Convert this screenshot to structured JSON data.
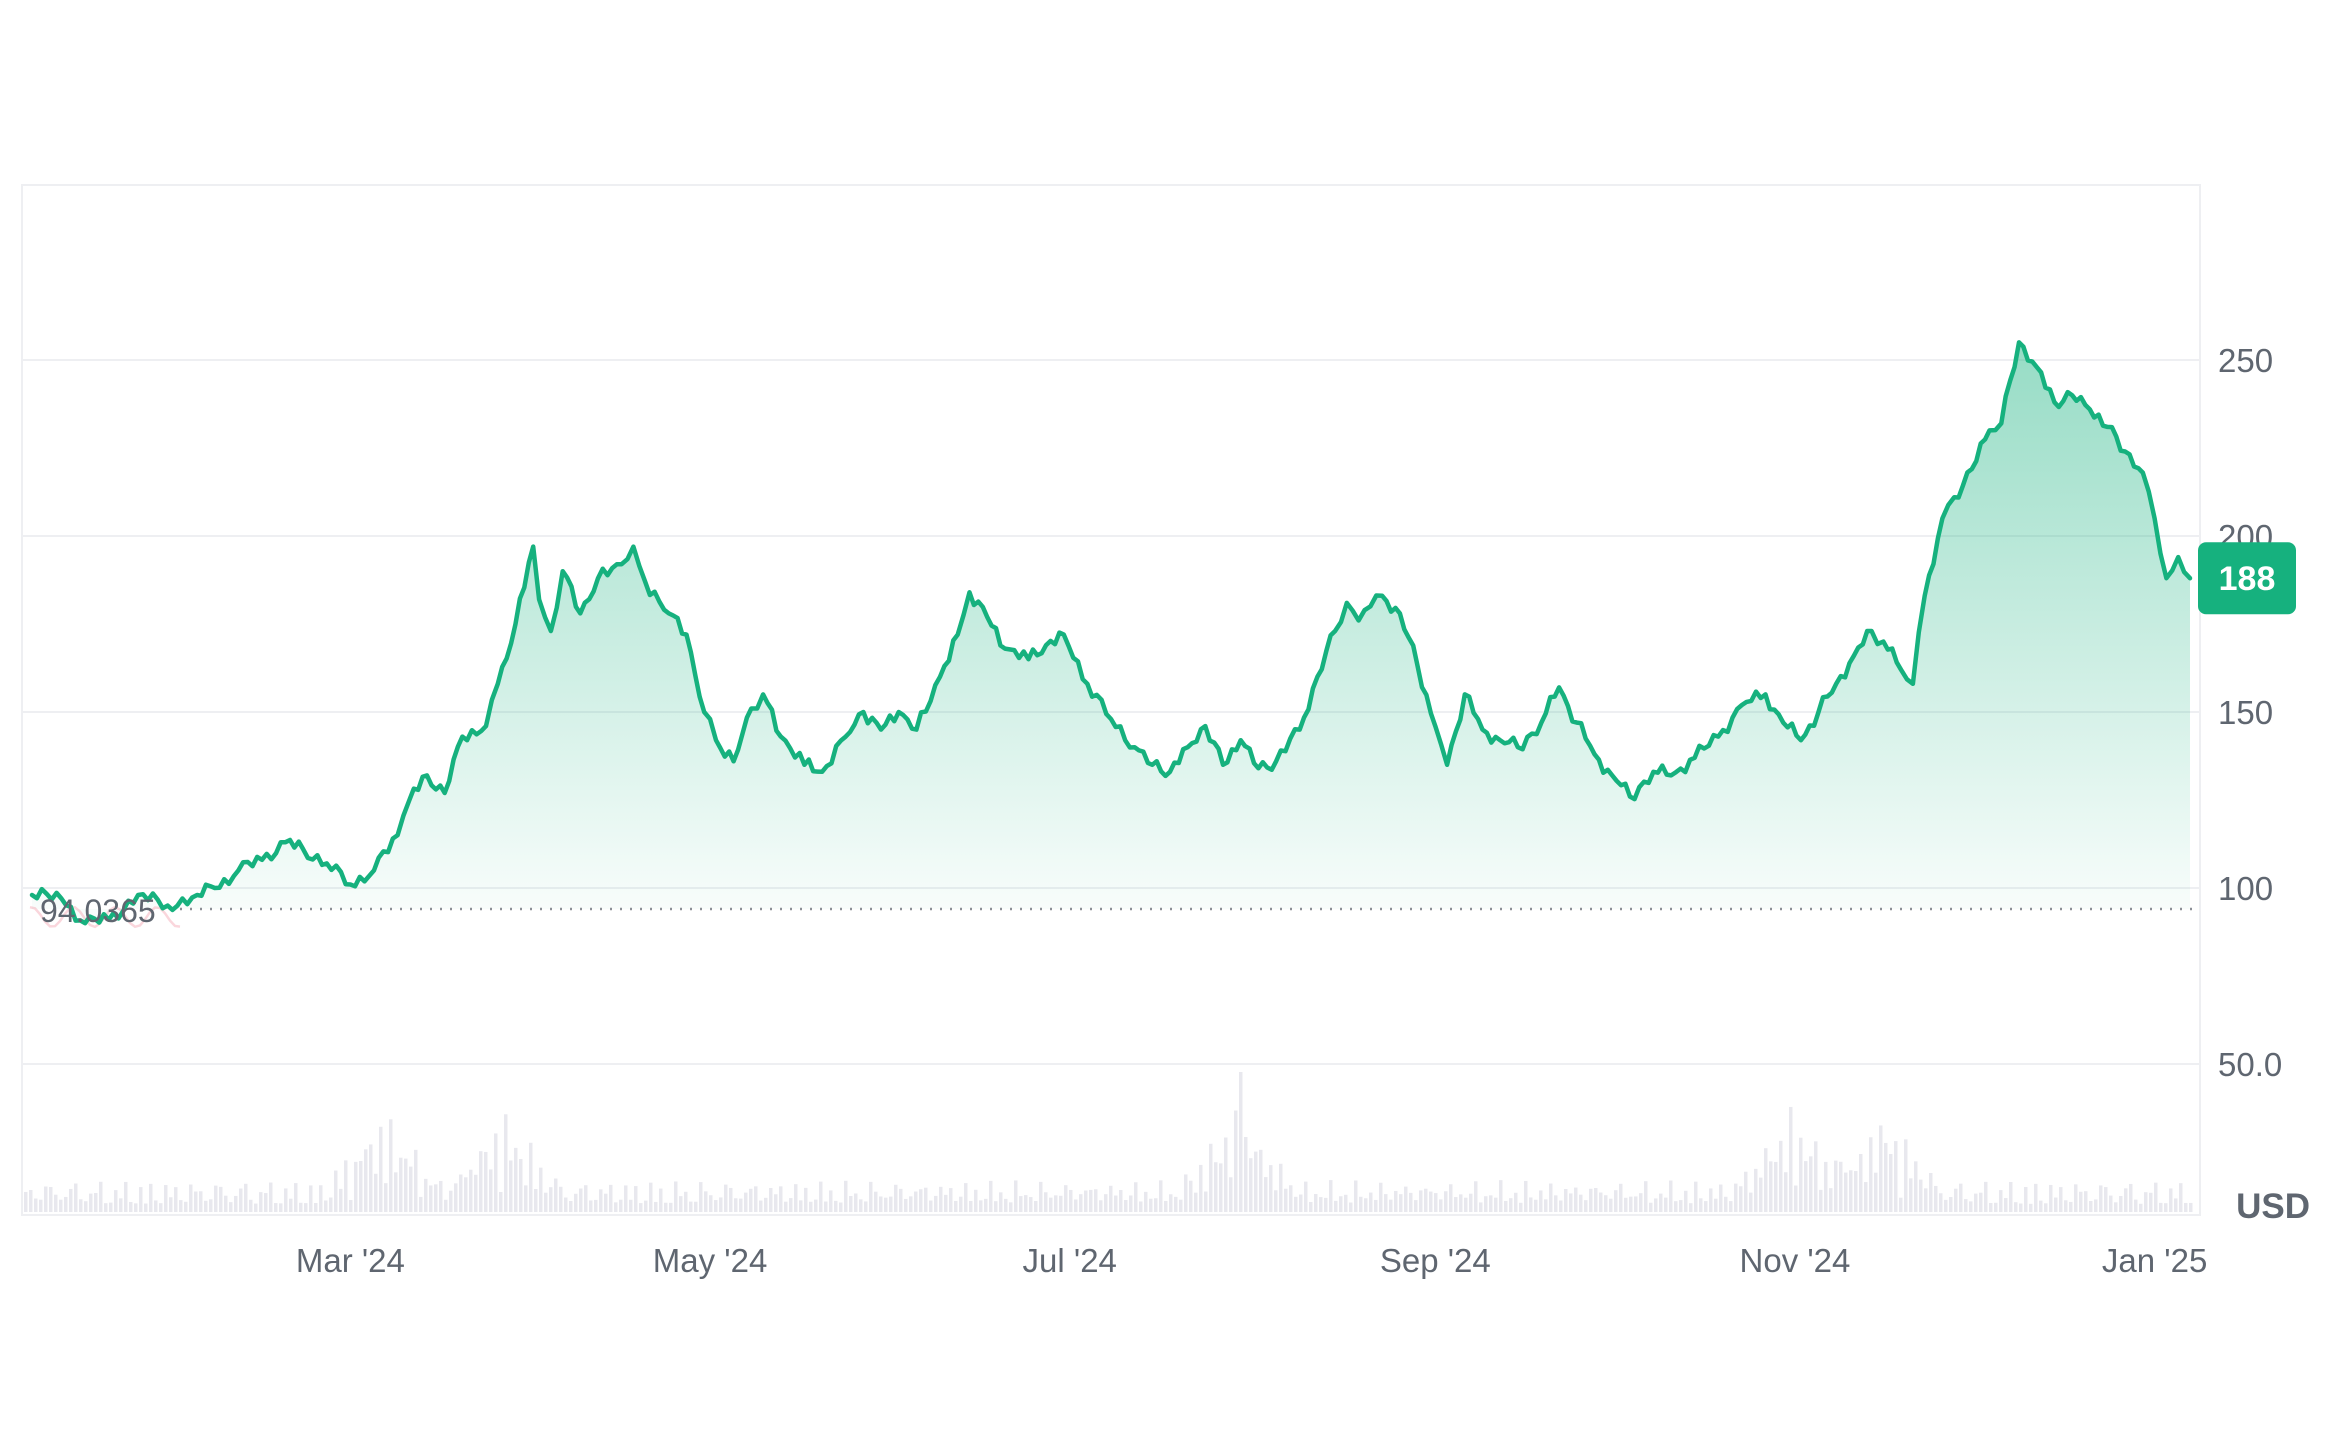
{
  "chart_data": {
    "type": "area",
    "title": "",
    "xlabel": "",
    "ylabel": "",
    "currency": "USD",
    "ylim": [
      0,
      300
    ],
    "y_ticks": [
      50,
      100,
      150,
      200,
      250
    ],
    "y_tick_labels": [
      "50.0",
      "100",
      "150",
      "200",
      "250"
    ],
    "x_tick_labels": [
      "Mar '24",
      "May '24",
      "Jul '24",
      "Sep '24",
      "Nov '24",
      "Jan '25"
    ],
    "x_tick_dates": [
      "2024-03-01",
      "2024-05-01",
      "2024-07-01",
      "2024-09-01",
      "2024-11-01",
      "2025-01-01"
    ],
    "x_range": [
      "2024-01-07",
      "2025-01-07"
    ],
    "baseline_value": 94.0365,
    "baseline_label": "94.0365",
    "current_value": 188,
    "current_label": "188",
    "colors": {
      "line": "#16b17e",
      "area_top": "#16b17e",
      "below_baseline": "#f08a9a",
      "badge": "#16b17e",
      "volume": "#e8e8ee",
      "grid": "#eeeff2"
    },
    "series": [
      {
        "points": [
          [
            "2024-01-07",
            98
          ],
          [
            "2024-01-12",
            97
          ],
          [
            "2024-01-16",
            90
          ],
          [
            "2024-01-20",
            91
          ],
          [
            "2024-01-25",
            98
          ],
          [
            "2024-01-30",
            95
          ],
          [
            "2024-02-04",
            98
          ],
          [
            "2024-02-07",
            100
          ],
          [
            "2024-02-11",
            105
          ],
          [
            "2024-02-15",
            108
          ],
          [
            "2024-02-19",
            113
          ],
          [
            "2024-02-22",
            111
          ],
          [
            "2024-02-26",
            107
          ],
          [
            "2024-03-01",
            101
          ],
          [
            "2024-03-05",
            105
          ],
          [
            "2024-03-09",
            115
          ],
          [
            "2024-03-11",
            125
          ],
          [
            "2024-03-14",
            132
          ],
          [
            "2024-03-17",
            127
          ],
          [
            "2024-03-20",
            143
          ],
          [
            "2024-03-24",
            146
          ],
          [
            "2024-03-26",
            158
          ],
          [
            "2024-03-29",
            175
          ],
          [
            "2024-04-01",
            197
          ],
          [
            "2024-04-02",
            182
          ],
          [
            "2024-04-04",
            173
          ],
          [
            "2024-04-06",
            190
          ],
          [
            "2024-04-09",
            178
          ],
          [
            "2024-04-12",
            188
          ],
          [
            "2024-04-16",
            192
          ],
          [
            "2024-04-18",
            197
          ],
          [
            "2024-04-20",
            187
          ],
          [
            "2024-04-24",
            178
          ],
          [
            "2024-04-27",
            172
          ],
          [
            "2024-04-30",
            150
          ],
          [
            "2024-05-02",
            142
          ],
          [
            "2024-05-05",
            136
          ],
          [
            "2024-05-08",
            151
          ],
          [
            "2024-05-10",
            155
          ],
          [
            "2024-05-13",
            143
          ],
          [
            "2024-05-17",
            135
          ],
          [
            "2024-05-20",
            133
          ],
          [
            "2024-05-24",
            143
          ],
          [
            "2024-05-27",
            150
          ],
          [
            "2024-05-30",
            145
          ],
          [
            "2024-06-02",
            150
          ],
          [
            "2024-06-05",
            145
          ],
          [
            "2024-06-09",
            160
          ],
          [
            "2024-06-12",
            172
          ],
          [
            "2024-06-14",
            184
          ],
          [
            "2024-06-17",
            177
          ],
          [
            "2024-06-20",
            168
          ],
          [
            "2024-06-24",
            165
          ],
          [
            "2024-06-27",
            169
          ],
          [
            "2024-06-30",
            172
          ],
          [
            "2024-07-04",
            158
          ],
          [
            "2024-07-08",
            148
          ],
          [
            "2024-07-12",
            140
          ],
          [
            "2024-07-15",
            135
          ],
          [
            "2024-07-18",
            133
          ],
          [
            "2024-07-21",
            140
          ],
          [
            "2024-07-24",
            146
          ],
          [
            "2024-07-27",
            135
          ],
          [
            "2024-07-30",
            142
          ],
          [
            "2024-08-02",
            134
          ],
          [
            "2024-08-05",
            136
          ],
          [
            "2024-08-09",
            145
          ],
          [
            "2024-08-12",
            160
          ],
          [
            "2024-08-15",
            173
          ],
          [
            "2024-08-17",
            181
          ],
          [
            "2024-08-19",
            176
          ],
          [
            "2024-08-21",
            180
          ],
          [
            "2024-08-23",
            183
          ],
          [
            "2024-08-26",
            178
          ],
          [
            "2024-08-29",
            163
          ],
          [
            "2024-09-01",
            146
          ],
          [
            "2024-09-03",
            135
          ],
          [
            "2024-09-06",
            155
          ],
          [
            "2024-09-09",
            145
          ],
          [
            "2024-09-12",
            142
          ],
          [
            "2024-09-15",
            140
          ],
          [
            "2024-09-19",
            147
          ],
          [
            "2024-09-22",
            157
          ],
          [
            "2024-09-25",
            147
          ],
          [
            "2024-09-28",
            138
          ],
          [
            "2024-10-01",
            132
          ],
          [
            "2024-10-04",
            126
          ],
          [
            "2024-10-08",
            133
          ],
          [
            "2024-10-11",
            132
          ],
          [
            "2024-10-15",
            137
          ],
          [
            "2024-10-19",
            143
          ],
          [
            "2024-10-23",
            152
          ],
          [
            "2024-10-27",
            155
          ],
          [
            "2024-10-30",
            147
          ],
          [
            "2024-11-02",
            142
          ],
          [
            "2024-11-05",
            150
          ],
          [
            "2024-11-08",
            158
          ],
          [
            "2024-11-11",
            166
          ],
          [
            "2024-11-14",
            173
          ],
          [
            "2024-11-16",
            170
          ],
          [
            "2024-11-19",
            162
          ],
          [
            "2024-11-21",
            158
          ],
          [
            "2024-11-23",
            183
          ],
          [
            "2024-11-26",
            205
          ],
          [
            "2024-11-28",
            211
          ],
          [
            "2024-12-01",
            219
          ],
          [
            "2024-12-04",
            230
          ],
          [
            "2024-12-06",
            232
          ],
          [
            "2024-12-09",
            255
          ],
          [
            "2024-12-12",
            248
          ],
          [
            "2024-12-15",
            238
          ],
          [
            "2024-12-18",
            240
          ],
          [
            "2024-12-21",
            236
          ],
          [
            "2024-12-24",
            231
          ],
          [
            "2024-12-27",
            224
          ],
          [
            "2024-12-30",
            218
          ],
          [
            "2025-01-01",
            205
          ],
          [
            "2025-01-03",
            188
          ],
          [
            "2025-01-05",
            194
          ],
          [
            "2025-01-07",
            188
          ]
        ]
      }
    ]
  }
}
